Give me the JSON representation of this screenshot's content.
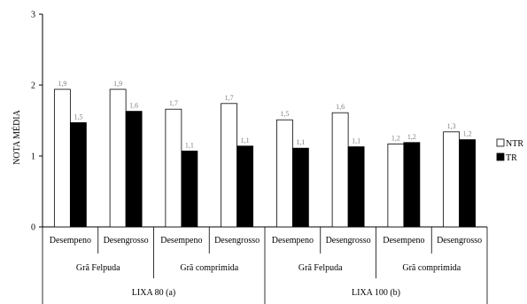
{
  "chart_data": {
    "type": "bar",
    "title": "",
    "ylabel": "NOTA MÉDIA",
    "xlabel": "",
    "ylim": [
      0,
      3
    ],
    "yticks": [
      "0",
      "1",
      "2",
      "3"
    ],
    "grid": false,
    "legend_position": "right",
    "categories": [
      "Desempeno",
      "Desengrosso",
      "Desempeno",
      "Desengrosso",
      "Desempeno",
      "Desengrosso",
      "Desempeno",
      "Desengrosso"
    ],
    "groups_level2": [
      "Grã Felpuda",
      "Grã comprimida",
      "Grã Felpuda",
      "Grã comprimida"
    ],
    "groups_level3": [
      "LIXA 80 (a)",
      "LIXA 100 (b)"
    ],
    "series": [
      {
        "name": "NTR",
        "color": "#ffffff",
        "values": [
          1.94,
          1.94,
          1.66,
          1.74,
          1.51,
          1.61,
          1.17,
          1.34
        ],
        "labels": [
          "1,9",
          "1,9",
          "1,7",
          "1,7",
          "1,5",
          "1,6",
          "1,2",
          "1,3"
        ]
      },
      {
        "name": "TR",
        "color": "#000000",
        "values": [
          1.47,
          1.63,
          1.07,
          1.14,
          1.11,
          1.13,
          1.19,
          1.23
        ],
        "labels": [
          "1,5",
          "1,6",
          "1,1",
          "1,1",
          "1,1",
          "1,1",
          "1,2",
          "1,2"
        ]
      }
    ]
  }
}
